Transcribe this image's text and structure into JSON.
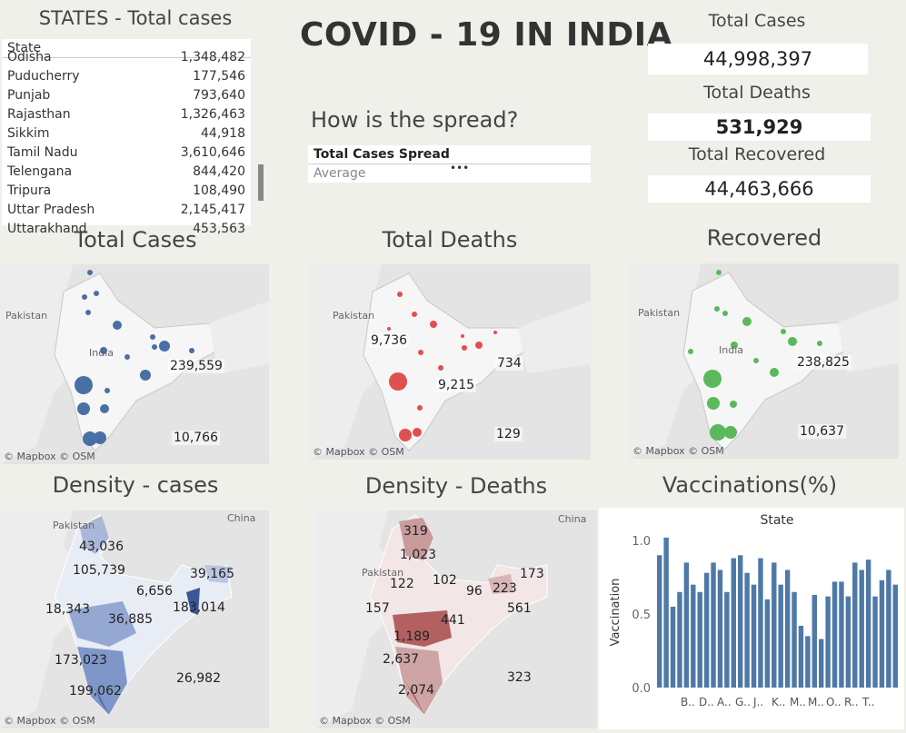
{
  "states_panel": {
    "title": "STATES - Total cases",
    "header": "State",
    "rows": [
      {
        "state": "Odisha",
        "cases": "1,348,482"
      },
      {
        "state": "Puducherry",
        "cases": "177,546"
      },
      {
        "state": "Punjab",
        "cases": "793,640"
      },
      {
        "state": "Rajasthan",
        "cases": "1,326,463"
      },
      {
        "state": "Sikkim",
        "cases": "44,918"
      },
      {
        "state": "Tamil Nadu",
        "cases": "3,610,646"
      },
      {
        "state": "Telengana",
        "cases": "844,420"
      },
      {
        "state": "Tripura",
        "cases": "108,490"
      },
      {
        "state": "Uttar Pradesh",
        "cases": "2,145,417"
      },
      {
        "state": "Uttarakhand",
        "cases": "453,563"
      }
    ]
  },
  "main_title": "COVID - 19 IN INDIA",
  "spread": {
    "question": "How is the spread?",
    "label": "Total Cases Spread",
    "value": "Average"
  },
  "kpis": {
    "total_cases_label": "Total Cases",
    "total_cases": "44,998,397",
    "total_deaths_label": "Total Deaths",
    "total_deaths": "531,929",
    "total_recovered_label": "Total Recovered",
    "total_recovered": "44,463,666"
  },
  "map_common": {
    "attribution": "© Mapbox © OSM",
    "pakistan": "Pakistan",
    "china": "China",
    "india": "India"
  },
  "maps": {
    "total_cases": {
      "title": "Total Cases",
      "color": "#4a6fa5",
      "labels": [
        "239,559",
        "10,766"
      ]
    },
    "total_deaths": {
      "title": "Total Deaths",
      "color": "#e05050",
      "labels": [
        "9,736",
        "9,215",
        "734",
        "129"
      ]
    },
    "recovered": {
      "title": "Recovered",
      "color": "#5cb85c",
      "labels": [
        "238,825",
        "10,637"
      ]
    },
    "density_cases": {
      "title": "Density - cases",
      "labels": [
        "43,036",
        "105,739",
        "39,165",
        "6,656",
        "18,343",
        "36,885",
        "183,014",
        "173,023",
        "26,982",
        "199,062"
      ]
    },
    "density_deaths": {
      "title": "Density - Deaths",
      "labels": [
        "319",
        "1,023",
        "122",
        "102",
        "96",
        "223",
        "173",
        "157",
        "561",
        "441",
        "1,189",
        "2,637",
        "323",
        "2,074"
      ]
    }
  },
  "chart_data": {
    "type": "bar",
    "title": "Vaccinations(%)",
    "header": "State",
    "ylabel": "Vaccination",
    "yticks": [
      "0.0",
      "0.5",
      "1.0"
    ],
    "ylim": [
      0,
      1.05
    ],
    "xtick_labels": [
      "B..",
      "D..",
      "A..",
      "G..",
      "J..",
      "K..",
      "M..",
      "M..",
      "O..",
      "R..",
      "T.."
    ],
    "values": [
      0.9,
      1.02,
      0.55,
      0.65,
      0.85,
      0.7,
      0.65,
      0.78,
      0.85,
      0.8,
      0.65,
      0.88,
      0.9,
      0.78,
      0.7,
      0.88,
      0.6,
      0.85,
      0.7,
      0.8,
      0.65,
      0.42,
      0.35,
      0.63,
      0.33,
      0.62,
      0.72,
      0.72,
      0.62,
      0.85,
      0.8,
      0.87,
      0.62,
      0.73,
      0.8,
      0.7
    ]
  }
}
